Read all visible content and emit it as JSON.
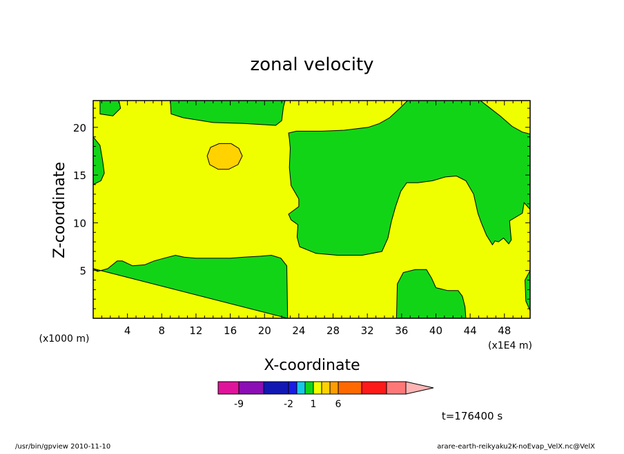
{
  "chart_data": {
    "type": "heatmap",
    "title": "zonal velocity",
    "xlabel": "X-coordinate",
    "ylabel": "Z-coordinate",
    "x_unit_note": "(x1E4 m)",
    "y_unit_note": "(x1000 m)",
    "xlim": [
      0,
      51
    ],
    "ylim": [
      0,
      22.8
    ],
    "x_ticks": [
      4,
      8,
      12,
      16,
      20,
      24,
      28,
      32,
      36,
      40,
      44,
      48
    ],
    "y_ticks": [
      5,
      10,
      15,
      20
    ],
    "legend": {
      "colors": [
        "#e0149b",
        "#8b0fb4",
        "#1218b4",
        "#1a1ae6",
        "#17c8e6",
        "#12d417",
        "#f0ff00",
        "#ffd200",
        "#ff9e00",
        "#ff6a00",
        "#ff1a1a",
        "#ff7878",
        "#ffb4b4"
      ],
      "tick_labels": [
        "-9",
        "-2",
        "1",
        "6"
      ]
    },
    "colors": {
      "positive_low": "#f0ff00",
      "near_zero": "#12d417",
      "positive_mid": "#ffd200"
    },
    "regions": [
      {
        "value_range": "0 to 1",
        "color": "#12d417",
        "points": [
          [
            0.8,
            22.8
          ],
          [
            0.8,
            21.4
          ],
          [
            2.3,
            21.2
          ],
          [
            3.2,
            22.0
          ],
          [
            3.0,
            22.8
          ]
        ]
      },
      {
        "value_range": "0 to 1",
        "color": "#12d417",
        "points": [
          [
            9.0,
            22.8
          ],
          [
            9.1,
            21.4
          ],
          [
            10.5,
            21.0
          ],
          [
            14.0,
            20.5
          ],
          [
            17.6,
            20.4
          ],
          [
            21.3,
            20.2
          ],
          [
            22.0,
            20.7
          ],
          [
            22.2,
            22.1
          ],
          [
            22.4,
            22.8
          ]
        ]
      },
      {
        "value_range": "0 to 1",
        "color": "#12d417",
        "points": [
          [
            0,
            19.0
          ],
          [
            0.8,
            18.1
          ],
          [
            1.1,
            16.5
          ],
          [
            1.3,
            15.2
          ],
          [
            0.9,
            14.4
          ],
          [
            0,
            14.0
          ]
        ]
      },
      {
        "value_range": "0 to 1",
        "color": "#12d417",
        "points": [
          [
            0,
            5.2
          ],
          [
            0.5,
            4.9
          ],
          [
            1.7,
            5.2
          ],
          [
            2.8,
            6.0
          ],
          [
            3.4,
            6.0
          ],
          [
            4.6,
            5.5
          ],
          [
            6.0,
            5.6
          ],
          [
            7.1,
            6.0
          ],
          [
            8.3,
            6.3
          ],
          [
            9.6,
            6.6
          ],
          [
            10.6,
            6.4
          ],
          [
            12.0,
            6.3
          ],
          [
            14.0,
            6.3
          ],
          [
            16.0,
            6.3
          ],
          [
            17.6,
            6.4
          ],
          [
            19.5,
            6.5
          ],
          [
            20.8,
            6.6
          ],
          [
            21.9,
            6.3
          ],
          [
            22.6,
            5.5
          ],
          [
            22.7,
            0
          ]
        ]
      },
      {
        "value_range": "0 to 1",
        "color": "#12d417",
        "points": [
          [
            22.8,
            19.4
          ],
          [
            23.7,
            19.6
          ],
          [
            26.7,
            19.6
          ],
          [
            29.3,
            19.7
          ],
          [
            32.1,
            20.0
          ],
          [
            33.4,
            20.4
          ],
          [
            34.6,
            21.0
          ],
          [
            35.8,
            22.0
          ],
          [
            36.7,
            22.8
          ],
          [
            45.2,
            22.8
          ],
          [
            46.2,
            22.1
          ],
          [
            47.5,
            21.2
          ],
          [
            48.9,
            20.1
          ],
          [
            50.1,
            19.5
          ],
          [
            51,
            19.3
          ],
          [
            51,
            11.4
          ],
          [
            50.3,
            12.1
          ],
          [
            50.1,
            11.0
          ],
          [
            48.6,
            10.2
          ],
          [
            48.8,
            8.2
          ],
          [
            48.5,
            7.8
          ],
          [
            47.9,
            8.4
          ],
          [
            47.3,
            8.0
          ],
          [
            46.9,
            8.1
          ],
          [
            46.6,
            7.7
          ],
          [
            45.9,
            8.7
          ],
          [
            45.3,
            10.0
          ],
          [
            44.9,
            11.0
          ],
          [
            44.4,
            13.0
          ],
          [
            43.5,
            14.4
          ],
          [
            42.4,
            14.9
          ],
          [
            41.1,
            14.8
          ],
          [
            39.6,
            14.4
          ],
          [
            37.9,
            14.2
          ],
          [
            36.6,
            14.2
          ],
          [
            35.9,
            13.3
          ],
          [
            35.3,
            11.7
          ],
          [
            34.8,
            10.1
          ],
          [
            34.4,
            8.4
          ],
          [
            33.7,
            7.0
          ],
          [
            31.4,
            6.6
          ],
          [
            28.5,
            6.6
          ],
          [
            26.0,
            6.8
          ],
          [
            24.1,
            7.5
          ],
          [
            23.8,
            8.5
          ],
          [
            23.9,
            9.8
          ],
          [
            23.1,
            10.3
          ],
          [
            22.8,
            10.9
          ],
          [
            24.0,
            11.7
          ],
          [
            24.0,
            12.5
          ],
          [
            23.1,
            13.9
          ],
          [
            22.9,
            15.8
          ],
          [
            23.0,
            17.8
          ],
          [
            22.9,
            18.8
          ]
        ]
      },
      {
        "value_range": "0 to 1",
        "color": "#12d417",
        "points": [
          [
            35.4,
            0
          ],
          [
            35.5,
            3.6
          ],
          [
            36.2,
            4.8
          ],
          [
            37.6,
            5.1
          ],
          [
            38.9,
            5.1
          ],
          [
            39.5,
            4.2
          ],
          [
            40.0,
            3.2
          ],
          [
            41.4,
            2.9
          ],
          [
            42.6,
            2.9
          ],
          [
            43.1,
            2.3
          ],
          [
            43.4,
            1.2
          ],
          [
            43.5,
            0
          ]
        ]
      },
      {
        "value_range": "0 to 1",
        "color": "#12d417",
        "points": [
          [
            51,
            5.0
          ],
          [
            50.4,
            4.0
          ],
          [
            50.5,
            1.8
          ],
          [
            51,
            0.8
          ]
        ]
      },
      {
        "value_range": "1 to 2",
        "color": "#ffd200",
        "points": [
          [
            13.3,
            17.0
          ],
          [
            13.7,
            17.9
          ],
          [
            14.7,
            18.3
          ],
          [
            16.1,
            18.3
          ],
          [
            17.0,
            17.8
          ],
          [
            17.4,
            17.0
          ],
          [
            16.9,
            16.1
          ],
          [
            15.8,
            15.6
          ],
          [
            14.6,
            15.6
          ],
          [
            13.6,
            16.1
          ]
        ]
      }
    ],
    "annotations": {
      "time": "t=176400 s",
      "footer_left": "/usr/bin/gpview   2010-11-10",
      "footer_right": "arare-earth-reikyaku2K-noEvap_VelX.nc@VelX"
    }
  }
}
